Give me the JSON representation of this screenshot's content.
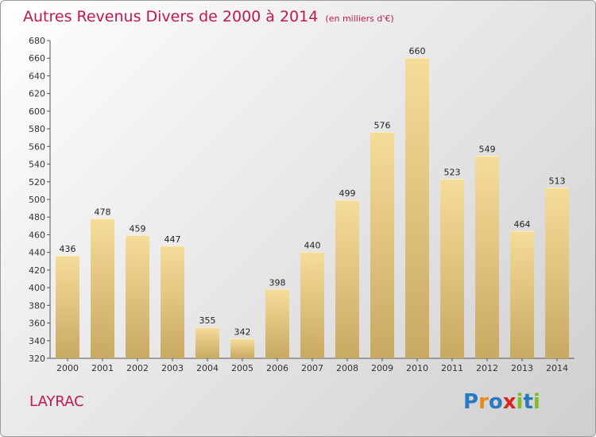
{
  "title": "Autres Revenus Divers de 2000 à 2014",
  "subtitle": "(en milliers d'€)",
  "commune": "LAYRAC",
  "brand": {
    "letters": [
      {
        "ch": "P",
        "color": "#2a78c2"
      },
      {
        "ch": "r",
        "color": "#e8891b"
      },
      {
        "ch": "o",
        "color": "#2a78c2"
      },
      {
        "ch": "x",
        "color": "#d6261e"
      },
      {
        "ch": "i",
        "color": "#7cbf2a"
      },
      {
        "ch": "t",
        "color": "#2a78c2"
      },
      {
        "ch": "i",
        "color": "#7cbf2a"
      }
    ]
  },
  "chart_data": {
    "type": "bar",
    "categories": [
      "2000",
      "2001",
      "2002",
      "2003",
      "2004",
      "2005",
      "2006",
      "2007",
      "2008",
      "2009",
      "2010",
      "2011",
      "2012",
      "2013",
      "2014"
    ],
    "values": [
      436,
      478,
      459,
      447,
      355,
      342,
      398,
      440,
      499,
      576,
      660,
      523,
      549,
      464,
      513
    ],
    "ylim": [
      320,
      680
    ],
    "yticks": [
      320,
      340,
      360,
      380,
      400,
      420,
      440,
      460,
      480,
      500,
      520,
      540,
      560,
      580,
      600,
      620,
      640,
      660,
      680
    ],
    "grid": false,
    "colors": {
      "bar_top": "#f6dc9a",
      "bar_bottom": "#c8a962",
      "accent": "#c0184f"
    }
  }
}
